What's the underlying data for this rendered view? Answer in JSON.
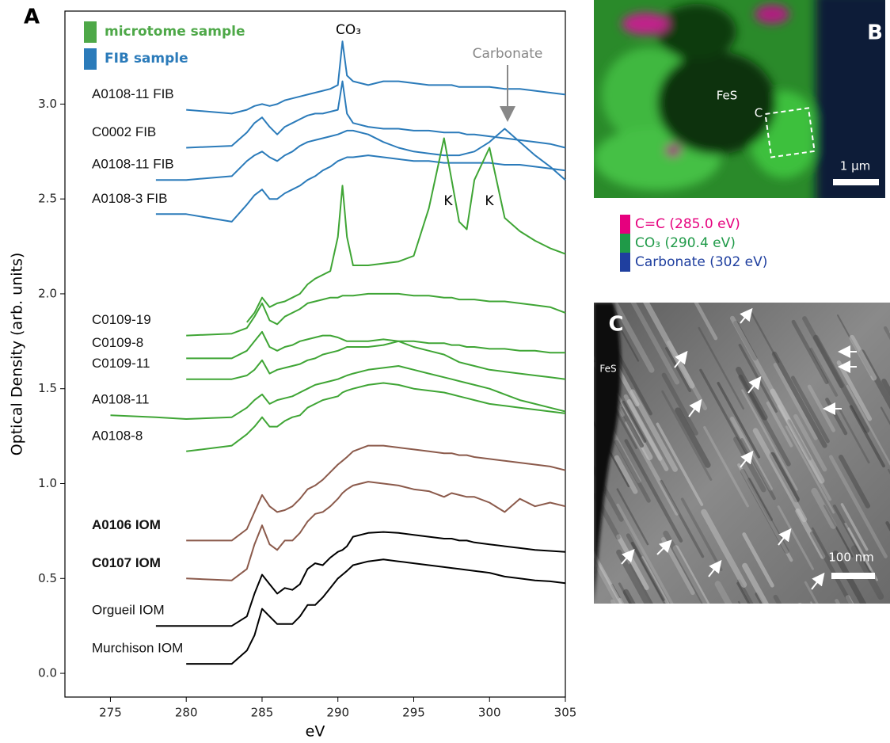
{
  "chart_data": {
    "type": "line",
    "panel_label": "A",
    "xlabel": "eV",
    "ylabel": "Optical Density (arb. units)",
    "xlim": [
      272,
      305
    ],
    "xticks": [
      275,
      280,
      285,
      290,
      295,
      300,
      305
    ],
    "ylim": [
      -0.125,
      3.49
    ],
    "yticks": [
      {
        "value": 0,
        "label": "0.0"
      },
      0.5,
      {
        "value": 1,
        "label": "1.0"
      },
      1.5,
      {
        "value": 2,
        "label": "2.0"
      },
      2.5,
      {
        "value": 3,
        "label": "3.0"
      }
    ],
    "legend_position": "upper left",
    "legend": [
      {
        "label": "microtome sample",
        "color": "#4ea848"
      },
      {
        "label": "FIB sample",
        "color": "#2b7bba"
      }
    ],
    "annotations": [
      "CO₃",
      "Carbonate",
      "K",
      "K"
    ],
    "x": [
      275,
      278,
      280,
      283,
      284,
      284.5,
      285,
      285.5,
      286,
      286.5,
      287,
      287.5,
      288,
      288.5,
      289,
      289.5,
      290,
      290.3,
      290.6,
      291,
      292,
      293,
      294,
      295,
      296,
      297,
      297.5,
      298,
      298.5,
      299,
      300,
      301,
      302,
      303,
      304,
      305
    ],
    "series": [
      {
        "name": "A0108-11 FIB",
        "color": "#2b7bba",
        "values": [
          null,
          null,
          2.97,
          2.95,
          2.97,
          2.99,
          3.0,
          2.99,
          3.0,
          3.02,
          3.03,
          3.04,
          3.05,
          3.06,
          3.07,
          3.08,
          3.1,
          3.33,
          3.15,
          3.12,
          3.1,
          3.12,
          3.12,
          3.11,
          3.1,
          3.1,
          3.1,
          3.09,
          3.09,
          3.09,
          3.09,
          3.08,
          3.08,
          3.07,
          3.06,
          3.05
        ]
      },
      {
        "name": "C0002 FIB",
        "color": "#2b7bba",
        "values": [
          null,
          null,
          2.77,
          2.78,
          2.85,
          2.9,
          2.93,
          2.88,
          2.84,
          2.88,
          2.9,
          2.92,
          2.94,
          2.95,
          2.95,
          2.96,
          2.97,
          3.12,
          2.95,
          2.9,
          2.88,
          2.87,
          2.87,
          2.86,
          2.86,
          2.85,
          2.85,
          2.85,
          2.84,
          2.84,
          2.83,
          2.82,
          2.81,
          2.8,
          2.79,
          2.77
        ]
      },
      {
        "name": "A0108-11 FIB",
        "color": "#2b7bba",
        "values": [
          null,
          2.6,
          2.6,
          2.62,
          2.7,
          2.73,
          2.75,
          2.72,
          2.7,
          2.73,
          2.75,
          2.78,
          2.8,
          2.81,
          2.82,
          2.83,
          2.84,
          2.85,
          2.86,
          2.86,
          2.84,
          2.8,
          2.77,
          2.75,
          2.74,
          2.73,
          2.73,
          2.73,
          2.74,
          2.75,
          2.8,
          2.87,
          2.8,
          2.73,
          2.67,
          2.6
        ]
      },
      {
        "name": "A0108-3 FIB",
        "color": "#2b7bba",
        "values": [
          null,
          2.42,
          2.42,
          2.38,
          2.47,
          2.52,
          2.55,
          2.5,
          2.5,
          2.53,
          2.55,
          2.57,
          2.6,
          2.62,
          2.65,
          2.67,
          2.7,
          2.71,
          2.72,
          2.72,
          2.73,
          2.72,
          2.71,
          2.7,
          2.7,
          2.69,
          2.69,
          2.69,
          2.69,
          2.69,
          2.69,
          2.68,
          2.68,
          2.67,
          2.66,
          2.65
        ]
      },
      {
        "color": "#3fa535",
        "values": [
          null,
          null,
          null,
          null,
          1.85,
          1.9,
          1.98,
          1.93,
          1.95,
          1.96,
          1.98,
          2.0,
          2.05,
          2.08,
          2.1,
          2.12,
          2.3,
          2.57,
          2.3,
          2.15,
          2.15,
          2.16,
          2.17,
          2.2,
          2.45,
          2.82,
          2.6,
          2.38,
          2.34,
          2.6,
          2.77,
          2.4,
          2.33,
          2.28,
          2.24,
          2.21
        ]
      },
      {
        "name": "C0109-19",
        "color": "#3fa535",
        "values": [
          null,
          null,
          1.78,
          1.79,
          1.82,
          1.88,
          1.95,
          1.86,
          1.84,
          1.88,
          1.9,
          1.92,
          1.95,
          1.96,
          1.97,
          1.98,
          1.98,
          1.99,
          1.99,
          1.99,
          2.0,
          2.0,
          2.0,
          1.99,
          1.99,
          1.98,
          1.98,
          1.97,
          1.97,
          1.97,
          1.96,
          1.96,
          1.95,
          1.94,
          1.93,
          1.9
        ]
      },
      {
        "name": "C0109-8",
        "color": "#3fa535",
        "values": [
          null,
          null,
          1.66,
          1.66,
          1.7,
          1.75,
          1.8,
          1.72,
          1.7,
          1.72,
          1.73,
          1.75,
          1.76,
          1.77,
          1.78,
          1.78,
          1.77,
          1.76,
          1.75,
          1.75,
          1.75,
          1.76,
          1.75,
          1.75,
          1.74,
          1.74,
          1.73,
          1.73,
          1.72,
          1.72,
          1.71,
          1.71,
          1.7,
          1.7,
          1.69,
          1.69
        ]
      },
      {
        "name": "C0109-11",
        "color": "#3fa535",
        "values": [
          null,
          null,
          1.55,
          1.55,
          1.57,
          1.6,
          1.65,
          1.58,
          1.6,
          1.61,
          1.62,
          1.63,
          1.65,
          1.66,
          1.68,
          1.69,
          1.7,
          1.71,
          1.72,
          1.72,
          1.72,
          1.73,
          1.75,
          1.72,
          1.7,
          1.68,
          1.66,
          1.64,
          1.63,
          1.62,
          1.6,
          1.59,
          1.58,
          1.57,
          1.56,
          1.55
        ]
      },
      {
        "name": "A0108-11",
        "color": "#3fa535",
        "values": [
          1.36,
          1.35,
          1.34,
          1.35,
          1.4,
          1.44,
          1.47,
          1.42,
          1.44,
          1.45,
          1.46,
          1.48,
          1.5,
          1.52,
          1.53,
          1.54,
          1.55,
          1.56,
          1.57,
          1.58,
          1.6,
          1.61,
          1.62,
          1.6,
          1.58,
          1.56,
          1.55,
          1.54,
          1.53,
          1.52,
          1.5,
          1.47,
          1.44,
          1.42,
          1.4,
          1.38
        ]
      },
      {
        "name": "A0108-8",
        "color": "#3fa535",
        "values": [
          null,
          null,
          1.17,
          1.2,
          1.26,
          1.3,
          1.35,
          1.3,
          1.3,
          1.33,
          1.35,
          1.36,
          1.4,
          1.42,
          1.44,
          1.45,
          1.46,
          1.48,
          1.49,
          1.5,
          1.52,
          1.53,
          1.52,
          1.5,
          1.49,
          1.48,
          1.47,
          1.46,
          1.45,
          1.44,
          1.42,
          1.41,
          1.4,
          1.39,
          1.38,
          1.37
        ]
      },
      {
        "name": "A0106 IOM",
        "color": "#8b5a4b",
        "label_color": "#6b4226",
        "values": [
          null,
          null,
          0.7,
          0.7,
          0.76,
          0.85,
          0.94,
          0.88,
          0.85,
          0.86,
          0.88,
          0.92,
          0.97,
          0.99,
          1.02,
          1.06,
          1.1,
          1.12,
          1.14,
          1.17,
          1.2,
          1.2,
          1.19,
          1.18,
          1.17,
          1.16,
          1.16,
          1.15,
          1.15,
          1.14,
          1.13,
          1.12,
          1.11,
          1.1,
          1.09,
          1.07
        ]
      },
      {
        "name": "C0107 IOM",
        "color": "#8b5a4b",
        "label_color": "#6b4226",
        "values": [
          null,
          null,
          0.5,
          0.49,
          0.55,
          0.68,
          0.78,
          0.68,
          0.65,
          0.7,
          0.7,
          0.74,
          0.8,
          0.84,
          0.85,
          0.88,
          0.92,
          0.95,
          0.97,
          0.99,
          1.01,
          1.0,
          0.99,
          0.97,
          0.96,
          0.93,
          0.95,
          0.94,
          0.93,
          0.93,
          0.9,
          0.85,
          0.92,
          0.88,
          0.9,
          0.88
        ]
      },
      {
        "name": "Orgueil IOM",
        "color": "#000000",
        "values": [
          null,
          0.25,
          0.25,
          0.25,
          0.3,
          0.42,
          0.52,
          0.47,
          0.42,
          0.45,
          0.44,
          0.47,
          0.55,
          0.58,
          0.57,
          0.61,
          0.64,
          0.65,
          0.67,
          0.72,
          0.74,
          0.745,
          0.74,
          0.73,
          0.72,
          0.71,
          0.71,
          0.7,
          0.7,
          0.69,
          0.68,
          0.67,
          0.66,
          0.65,
          0.645,
          0.64
        ]
      },
      {
        "name": "Murchison IOM",
        "color": "#000000",
        "values": [
          null,
          null,
          0.05,
          0.05,
          0.12,
          0.2,
          0.34,
          0.3,
          0.26,
          0.26,
          0.26,
          0.3,
          0.36,
          0.36,
          0.4,
          0.45,
          0.5,
          0.52,
          0.54,
          0.57,
          0.59,
          0.6,
          0.59,
          0.58,
          0.57,
          0.56,
          0.555,
          0.55,
          0.545,
          0.54,
          0.53,
          0.51,
          0.5,
          0.49,
          0.485,
          0.475
        ]
      }
    ]
  },
  "panel_b": {
    "label": "B",
    "annotations": [
      "FeS",
      "C"
    ],
    "scale_bar": "1 μm",
    "legend": [
      {
        "label": "C=C (285.0 eV)",
        "color": "#e6007e"
      },
      {
        "label": "CO₃ (290.4 eV)",
        "color": "#1f9a48"
      },
      {
        "label": "Carbonate (302 eV)",
        "color": "#1f3f9f"
      }
    ]
  },
  "panel_c": {
    "label": "C",
    "annotation": "FeS",
    "scale_bar": "100 nm"
  }
}
